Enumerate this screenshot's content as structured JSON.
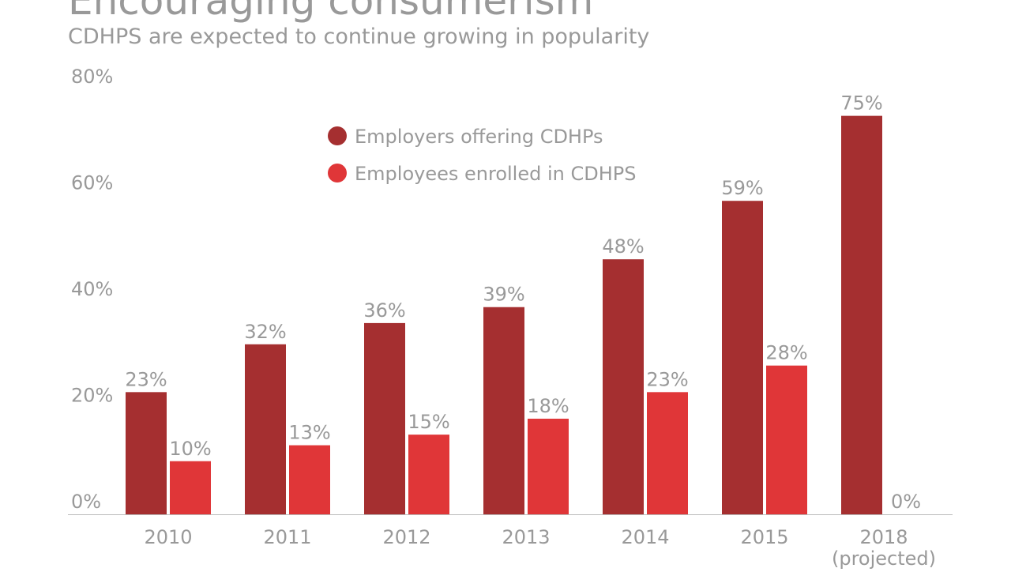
{
  "chart_data": {
    "type": "bar",
    "title": "Encouraging consumerism",
    "subtitle": "CDHPS are expected to continue growing in popularity",
    "categories": [
      "2010",
      "2011",
      "2012",
      "2013",
      "2014",
      "2015",
      "2018"
    ],
    "category_sublabels": [
      "",
      "",
      "",
      "",
      "",
      "",
      "(projected)"
    ],
    "series": [
      {
        "name": "Employers offering CDHPs",
        "color": "#a52f30",
        "values": [
          23,
          32,
          36,
          39,
          48,
          59,
          75
        ]
      },
      {
        "name": "Employees enrolled in CDHPS",
        "color": "#e03638",
        "values": [
          10,
          13,
          15,
          18,
          23,
          28,
          0
        ]
      }
    ],
    "value_suffix": "%",
    "ylim": [
      0,
      80
    ],
    "yticks": [
      "0%",
      "20%",
      "40%",
      "60%",
      "80%"
    ],
    "ytick_values": [
      0,
      20,
      40,
      60,
      80
    ],
    "grid": false,
    "legend": "top-center",
    "text_color": "#999999",
    "axis_color": "#bbbbbb"
  }
}
